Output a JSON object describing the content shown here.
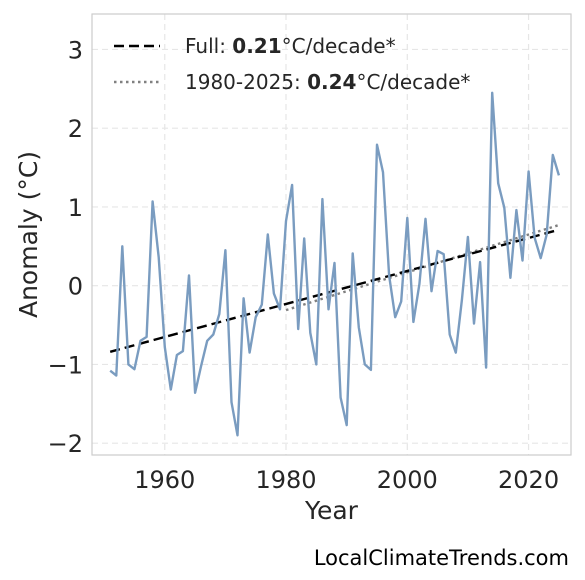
{
  "chart_data": {
    "type": "line",
    "xlabel": "Year",
    "ylabel": "Anomaly (°C)",
    "xlim": [
      1948,
      2027
    ],
    "ylim": [
      -2.15,
      3.45
    ],
    "x_ticks": [
      1960,
      1980,
      2000,
      2020
    ],
    "y_ticks": [
      -2,
      -1,
      0,
      1,
      2,
      3
    ],
    "y_tick_labels": [
      "−2",
      "−1",
      "0",
      "1",
      "2",
      "3"
    ],
    "grid": true,
    "legend_position": "top-left",
    "series": [
      {
        "color": "#7a9cc0",
        "x": [
          1951,
          1952,
          1953,
          1954,
          1955,
          1956,
          1957,
          1958,
          1959,
          1960,
          1961,
          1962,
          1963,
          1964,
          1965,
          1966,
          1967,
          1968,
          1969,
          1970,
          1971,
          1972,
          1973,
          1974,
          1975,
          1976,
          1977,
          1978,
          1979,
          1980,
          1981,
          1982,
          1983,
          1984,
          1985,
          1986,
          1987,
          1988,
          1989,
          1990,
          1991,
          1992,
          1993,
          1994,
          1995,
          1996,
          1997,
          1998,
          1999,
          2000,
          2001,
          2002,
          2003,
          2004,
          2005,
          2006,
          2007,
          2008,
          2009,
          2010,
          2011,
          2012,
          2013,
          2014,
          2015,
          2016,
          2017,
          2018,
          2019,
          2020,
          2021,
          2022,
          2023,
          2024,
          2025
        ],
        "y": [
          -1.08,
          -1.14,
          0.5,
          -1.0,
          -1.06,
          -0.7,
          -0.65,
          1.07,
          0.36,
          -0.78,
          -1.32,
          -0.88,
          -0.83,
          0.13,
          -1.36,
          -1.02,
          -0.7,
          -0.62,
          -0.36,
          0.45,
          -1.48,
          -1.9,
          -0.16,
          -0.85,
          -0.4,
          -0.24,
          0.65,
          -0.1,
          -0.3,
          0.82,
          1.28,
          -0.55,
          0.6,
          -0.6,
          -1.0,
          1.1,
          -0.3,
          0.29,
          -1.42,
          -1.77,
          0.41,
          -0.53,
          -1.0,
          -1.07,
          1.79,
          1.44,
          0.13,
          -0.4,
          -0.2,
          0.86,
          -0.46,
          0.02,
          0.85,
          -0.07,
          0.44,
          0.4,
          -0.62,
          -0.85,
          -0.18,
          0.62,
          -0.48,
          0.3,
          -1.04,
          2.45,
          1.3,
          0.99,
          0.1,
          0.96,
          0.32,
          1.45,
          0.61,
          0.35,
          0.65,
          1.66,
          1.4
        ]
      }
    ],
    "trend_lines": [
      {
        "label_prefix": "Full: ",
        "label_value": "0.21",
        "label_suffix": "°C/decade*",
        "style": "dashed",
        "color": "#000000",
        "x": [
          1951,
          2025
        ],
        "y": [
          -0.84,
          0.71
        ]
      },
      {
        "label_prefix": "1980-2025: ",
        "label_value": "0.24",
        "label_suffix": "°C/decade*",
        "style": "dotted",
        "color": "#808080",
        "x": [
          1980,
          2025
        ],
        "y": [
          -0.31,
          0.77
        ]
      }
    ]
  },
  "source": "LocalClimateTrends.com"
}
